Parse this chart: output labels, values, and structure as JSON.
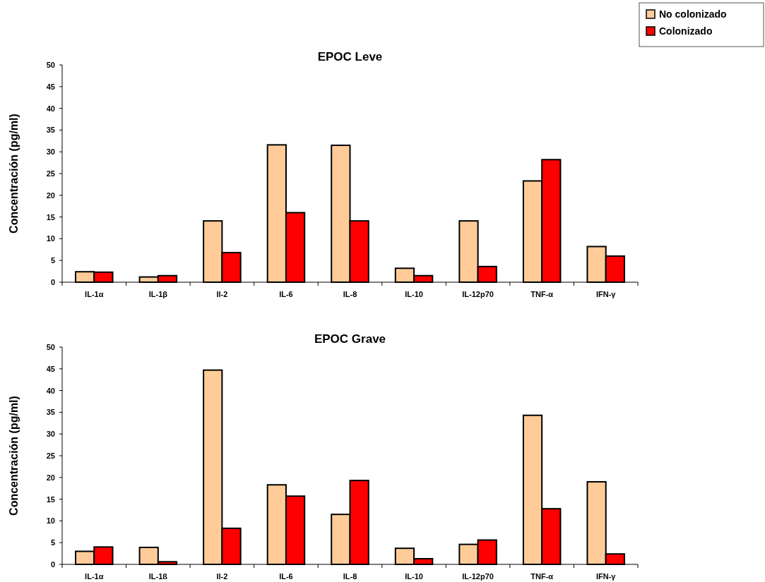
{
  "chart_data": [
    {
      "type": "bar",
      "title": "EPOC Leve",
      "ylabel": "Concentración (pg/ml)",
      "categories": [
        "IL-1α",
        "IL-1β",
        "Il-2",
        "IL-6",
        "IL-8",
        "IL-10",
        "IL-12p70",
        "TNF-α",
        "IFN-γ"
      ],
      "series": [
        {
          "name": "No colonizado",
          "color": "#ffcc99",
          "values": [
            2.4,
            1.2,
            14.1,
            31.6,
            31.5,
            3.2,
            14.1,
            23.3,
            8.2
          ]
        },
        {
          "name": "Colonizado",
          "color": "#ff0000",
          "values": [
            2.3,
            1.5,
            6.8,
            16.0,
            14.1,
            1.5,
            3.6,
            28.2,
            6.0
          ]
        }
      ],
      "ylim": [
        0,
        50
      ],
      "yticks": [
        0,
        5,
        10,
        15,
        20,
        25,
        30,
        35,
        40,
        45,
        50
      ],
      "grid": false,
      "legend": "top right"
    },
    {
      "type": "bar",
      "title": "EPOC Grave",
      "ylabel": "Concentración (pg/ml)",
      "categories": [
        "IL-1α",
        "IL-1ß",
        "Il-2",
        "IL-6",
        "IL-8",
        "IL-10",
        "IL-12p70",
        "TNF-α",
        "IFN-γ"
      ],
      "series": [
        {
          "color": "#ffcc99",
          "values": [
            3.0,
            3.9,
            44.7,
            18.3,
            11.5,
            3.7,
            4.6,
            34.3,
            19.0
          ]
        },
        {
          "color": "#ff0000",
          "values": [
            4.0,
            0.6,
            8.3,
            15.7,
            19.3,
            1.3,
            5.6,
            12.8,
            2.4
          ]
        }
      ],
      "ylim": [
        0,
        50
      ],
      "yticks": [
        0,
        5,
        10,
        15,
        20,
        25,
        30,
        35,
        40,
        45,
        50
      ],
      "grid": false
    }
  ]
}
